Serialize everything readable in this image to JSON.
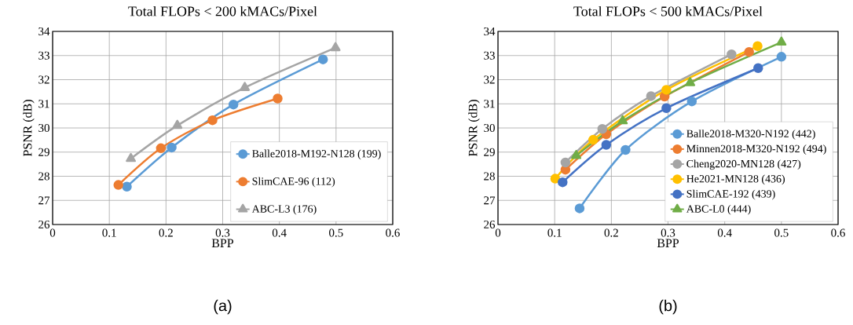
{
  "chart_data": [
    {
      "type": "line",
      "title": "Total FLOPs < 200 kMACs/Pixel",
      "xlabel": "BPP",
      "ylabel": "PSNR (dB)",
      "xlim": [
        0,
        0.6
      ],
      "xticks": [
        0,
        0.1,
        0.2,
        0.3,
        0.4,
        0.5,
        0.6
      ],
      "ylim": [
        26,
        34
      ],
      "yticks": [
        26,
        27,
        28,
        29,
        30,
        31,
        32,
        33,
        34
      ],
      "grid": true,
      "legend": "bottom right",
      "annotations": [
        "(a)"
      ],
      "series": [
        {
          "name": "Balle2018-M192-N128 (199)",
          "color": "#5b9bd5",
          "marker": "circle",
          "x": [
            0.131,
            0.21,
            0.319,
            0.477
          ],
          "values": [
            27.57,
            29.19,
            30.97,
            32.84
          ]
        },
        {
          "name": "SlimCAE-96 (112)",
          "color": "#ed7d31",
          "marker": "circle",
          "x": [
            0.116,
            0.191,
            0.282,
            0.397
          ],
          "values": [
            27.64,
            29.16,
            30.32,
            31.22
          ]
        },
        {
          "name": "ABC-L3 (176)",
          "color": "#a5a5a5",
          "marker": "triangle",
          "x": [
            0.138,
            0.22,
            0.339,
            0.499
          ],
          "values": [
            28.73,
            30.1,
            31.67,
            33.32
          ]
        }
      ]
    },
    {
      "type": "line",
      "title": "Total FLOPs < 500 kMACs/Pixel",
      "xlabel": "BPP",
      "ylabel": "PSNR (dB)",
      "xlim": [
        0,
        0.6
      ],
      "xticks": [
        0,
        0.1,
        0.2,
        0.3,
        0.4,
        0.5,
        0.6
      ],
      "ylim": [
        26,
        34
      ],
      "yticks": [
        26,
        27,
        28,
        29,
        30,
        31,
        32,
        33,
        34
      ],
      "grid": true,
      "legend": "bottom right",
      "annotations": [
        "(b)"
      ],
      "series": [
        {
          "name": "Balle2018-M320-N192 (442)",
          "color": "#5b9bd5",
          "marker": "circle",
          "x": [
            0.144,
            0.225,
            0.342,
            0.5
          ],
          "values": [
            26.67,
            29.09,
            31.1,
            32.95
          ]
        },
        {
          "name": "Minnen2018-M320-N192 (494)",
          "color": "#ed7d31",
          "marker": "circle",
          "x": [
            0.119,
            0.191,
            0.294,
            0.443
          ],
          "values": [
            28.27,
            29.74,
            31.3,
            33.15
          ]
        },
        {
          "name": "Cheng2020-MN128 (427)",
          "color": "#a5a5a5",
          "marker": "circle",
          "x": [
            0.119,
            0.184,
            0.27,
            0.412
          ],
          "values": [
            28.57,
            29.96,
            31.32,
            33.05
          ]
        },
        {
          "name": "He2021-MN128 (436)",
          "color": "#ffc000",
          "marker": "circle",
          "x": [
            0.101,
            0.168,
            0.297,
            0.458
          ],
          "values": [
            27.9,
            29.51,
            31.58,
            33.39
          ]
        },
        {
          "name": "SlimCAE-192 (439)",
          "color": "#4472c4",
          "marker": "circle",
          "x": [
            0.114,
            0.191,
            0.297,
            0.459
          ],
          "values": [
            27.75,
            29.3,
            30.82,
            32.48
          ]
        },
        {
          "name": "ABC-L0 (444)",
          "color": "#70ad47",
          "marker": "triangle",
          "x": [
            0.138,
            0.22,
            0.339,
            0.5
          ],
          "values": [
            28.85,
            30.29,
            31.87,
            33.55
          ]
        }
      ]
    }
  ]
}
